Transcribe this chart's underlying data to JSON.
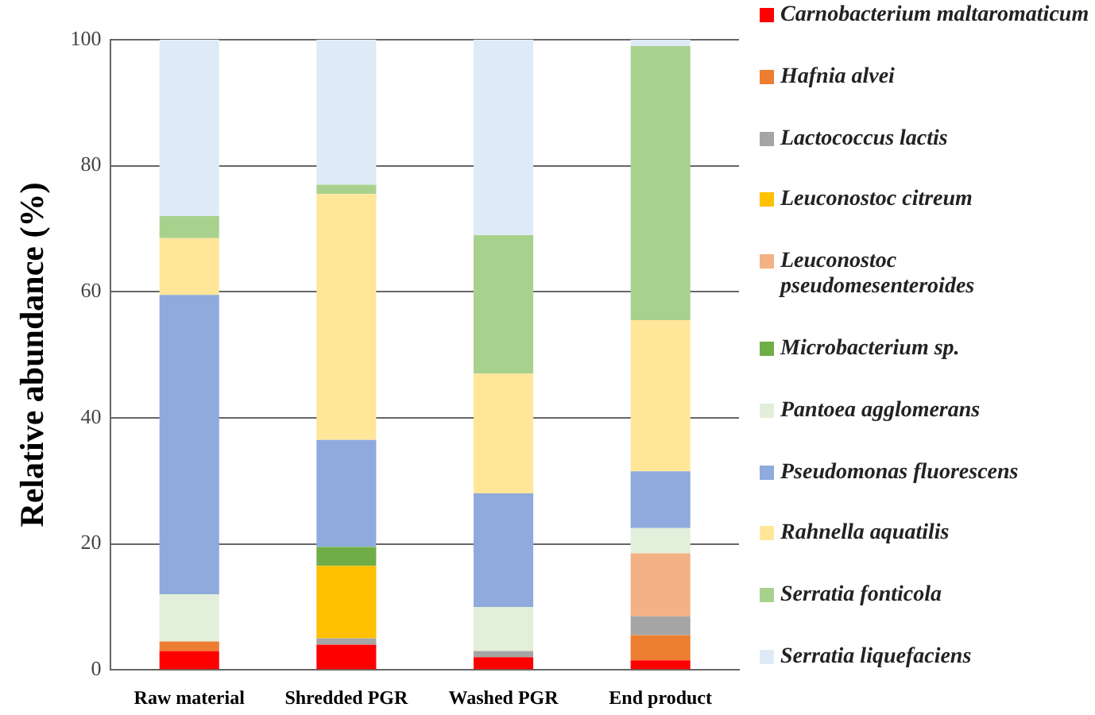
{
  "chart_data": {
    "type": "bar",
    "stacked": true,
    "ylabel": "Relative abundance (%)",
    "categories": [
      "Raw material",
      "Shredded PGR",
      "Washed PGR",
      "End product"
    ],
    "ylim": [
      0,
      100
    ],
    "yticks": [
      0,
      20,
      40,
      60,
      80,
      100
    ],
    "grid": "y",
    "legend": "right",
    "series": [
      {
        "name": "Carnobacterium maltaromaticum",
        "color": "#ff0000",
        "values": [
          3,
          4,
          2,
          1.5
        ]
      },
      {
        "name": "Hafnia alvei",
        "color": "#ed7d31",
        "values": [
          1.5,
          null,
          null,
          4
        ]
      },
      {
        "name": "Lactococcus lactis",
        "color": "#a5a5a5",
        "values": [
          null,
          1,
          1,
          3
        ]
      },
      {
        "name": "Leuconostoc citreum",
        "color": "#ffc000",
        "values": [
          null,
          11.5,
          null,
          null
        ]
      },
      {
        "name": "Leuconostoc pseudomesenteroides",
        "color": "#f4b183",
        "values": [
          null,
          null,
          null,
          10
        ]
      },
      {
        "name": "Microbacterium sp.",
        "color": "#70ad47",
        "values": [
          null,
          3,
          null,
          null
        ]
      },
      {
        "name": "Pantoea agglomerans",
        "color": "#e2efda",
        "values": [
          7.5,
          null,
          7,
          4
        ]
      },
      {
        "name": "Pseudomonas fluorescens",
        "color": "#8faadc",
        "values": [
          47.5,
          17,
          18,
          9
        ]
      },
      {
        "name": "Rahnella aquatilis",
        "color": "#ffe699",
        "values": [
          9,
          39,
          19,
          24
        ]
      },
      {
        "name": "Serratia fonticola",
        "color": "#a9d18e",
        "values": [
          3.5,
          1.5,
          22,
          43.5
        ]
      },
      {
        "name": "Serratia liquefaciens",
        "color": "#deebf7",
        "values": [
          28,
          23,
          31,
          1
        ]
      }
    ]
  }
}
